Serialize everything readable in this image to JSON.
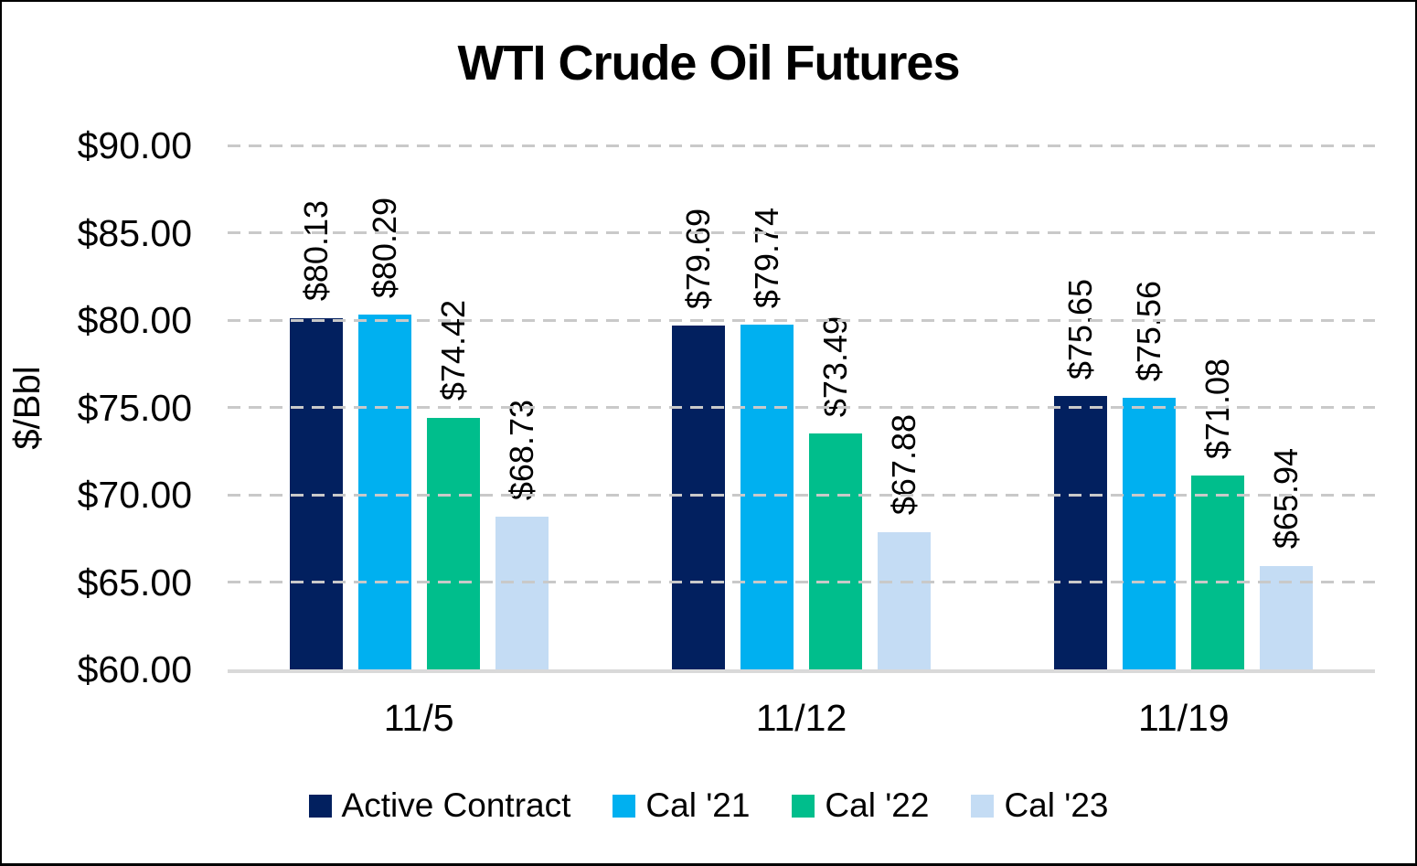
{
  "chart_data": {
    "type": "bar",
    "title": "WTI Crude Oil Futures",
    "ylabel": "$/Bbl",
    "xlabel": "",
    "ylim": [
      60,
      90
    ],
    "ytick_step": 5,
    "yticks": [
      {
        "value": 60,
        "label": "$60.00"
      },
      {
        "value": 65,
        "label": "$65.00"
      },
      {
        "value": 70,
        "label": "$70.00"
      },
      {
        "value": 75,
        "label": "$75.00"
      },
      {
        "value": 80,
        "label": "$80.00"
      },
      {
        "value": 85,
        "label": "$85.00"
      },
      {
        "value": 90,
        "label": "$90.00"
      }
    ],
    "grid": "dashed-horizontal-gray",
    "legend_position": "bottom",
    "categories": [
      "11/5",
      "11/12",
      "11/19"
    ],
    "series": [
      {
        "name": "Active Contract",
        "color": "#02205F",
        "values": [
          80.13,
          79.69,
          75.65
        ],
        "data_labels": [
          "$80.13",
          "$79.69",
          "$75.65"
        ]
      },
      {
        "name": "Cal '21",
        "color": "#00B0F0",
        "values": [
          80.29,
          79.74,
          75.56
        ],
        "data_labels": [
          "$80.29",
          "$79.74",
          "$75.56"
        ]
      },
      {
        "name": "Cal '22",
        "color": "#00BE8C",
        "values": [
          74.42,
          73.49,
          71.08
        ],
        "data_labels": [
          "$74.42",
          "$73.49",
          "$71.08"
        ]
      },
      {
        "name": "Cal '23",
        "color": "#C4DCF4",
        "values": [
          68.73,
          67.88,
          65.94
        ],
        "data_labels": [
          "$68.73",
          "$67.88",
          "$65.94"
        ]
      }
    ],
    "colors": {
      "gridline": "#C9C9C9",
      "baseline": "#D9D9D9",
      "text": "#000000",
      "border": "#000000"
    }
  }
}
